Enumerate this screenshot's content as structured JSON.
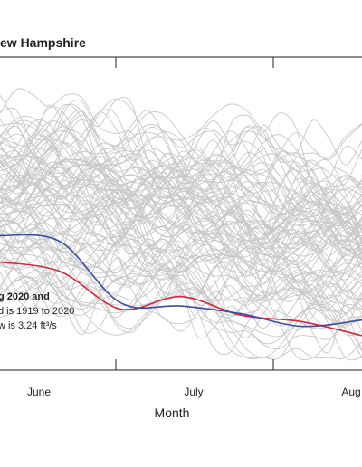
{
  "chart_data": {
    "type": "line",
    "title": "ew Hampshire",
    "xlabel": "Month",
    "ylabel": "",
    "x_ticks": [
      "June",
      "July",
      "Aug"
    ],
    "annotation_lines": [
      "g 2020 and",
      "d is 1919 to 2020",
      "w is 3.24 ft³/s"
    ],
    "grid": false,
    "x": [
      0,
      0.5,
      1,
      1.5,
      2,
      2.5,
      3
    ],
    "series": [
      {
        "color": "#d7263d",
        "values": [
          0.345,
          0.315,
          0.195,
          0.235,
          0.175,
          0.155,
          0.11
        ]
      },
      {
        "color": "#3b4ca0",
        "values": [
          0.43,
          0.41,
          0.215,
          0.205,
          0.18,
          0.14,
          0.16
        ]
      }
    ],
    "background_series_color": "#c8c8c8",
    "background_series_count": 100
  }
}
